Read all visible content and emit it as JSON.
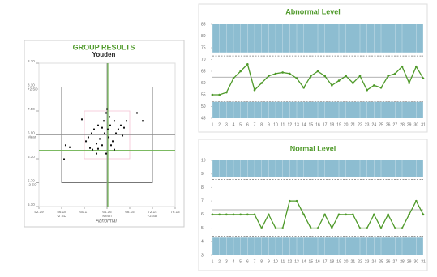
{
  "chart_data": [
    {
      "type": "scatter",
      "title": "GROUP RESULTS",
      "subtitle": "Youden",
      "x_label": "Abnormal",
      "color": "#111111",
      "x": [
        56.89,
        57.61,
        56.61,
        59.74,
        60.46,
        60.88,
        61.17,
        61.45,
        61.6,
        61.88,
        62.31,
        62.59,
        62.88,
        63.3,
        63.59,
        63.73,
        64.02,
        64.16,
        64.3,
        64.45,
        64.59,
        64.73,
        64.87,
        65.16,
        65.44,
        65.73,
        66.15,
        66.58,
        66.87,
        67.15,
        67.58,
        69.43,
        70.43,
        64.02,
        62.31,
        65.44,
        63.3,
        62.59
      ],
      "y": [
        6.64,
        6.59,
        6.29,
        7.29,
        6.74,
        6.84,
        6.57,
        6.94,
        6.53,
        7.04,
        6.68,
        6.55,
        6.8,
        6.64,
        7.25,
        6.94,
        7.45,
        7.55,
        7.04,
        6.84,
        7.35,
        7.14,
        6.64,
        6.74,
        7.25,
        6.94,
        7.04,
        7.14,
        6.88,
        7.08,
        7.25,
        7.45,
        7.25,
        6.43,
        6.43,
        6.53,
        7.08,
        7.14
      ],
      "xlim": [
        52.19,
        76.13
      ],
      "ylim": [
        5.1,
        8.7
      ],
      "xticks": [
        52.19,
        56.18,
        60.17,
        64.16,
        68.15,
        72.14,
        76.13
      ],
      "yticks": [
        {
          "value": 5.1,
          "label": "5.10"
        },
        {
          "value": 5.7,
          "label": "5.70"
        },
        {
          "value": 6.3,
          "label": "6.30"
        },
        {
          "value": 6.9,
          "label": "6.90"
        },
        {
          "value": 7.5,
          "label": "7.50"
        },
        {
          "value": 8.1,
          "label": "8.10"
        },
        {
          "value": 8.7,
          "label": "8.70"
        }
      ],
      "xtick_notes": [
        {
          "value": 56.18,
          "label": "-2 SD"
        },
        {
          "value": 64.16,
          "label": "Mean"
        },
        {
          "value": 72.14,
          "label": "+2 SD"
        }
      ],
      "ytick_notes": [
        {
          "value": 5.7,
          "label": "-2 SD"
        },
        {
          "value": 6.9,
          "label": "Mean"
        },
        {
          "value": 8.1,
          "label": "+2 SD"
        }
      ],
      "outer_box": {
        "x": [
          56.18,
          72.14
        ],
        "y": [
          5.7,
          8.1
        ],
        "color": "#555555"
      },
      "inner_box": {
        "x": [
          60.17,
          68.15
        ],
        "y": [
          6.3,
          7.5
        ],
        "color": "#f5c4d4"
      },
      "mean_lines": {
        "x": 64.16,
        "y": 6.9,
        "color": "#888888"
      },
      "target_lines": {
        "x": 64.3,
        "y": 6.51,
        "color": "#6ab04c"
      }
    },
    {
      "type": "line",
      "title": "Abnormal Level",
      "color": "#4f9a2a",
      "categories": [
        1,
        2,
        3,
        4,
        5,
        6,
        7,
        8,
        9,
        10,
        11,
        12,
        13,
        14,
        15,
        16,
        17,
        18,
        19,
        20,
        21,
        22,
        23,
        24,
        25,
        26,
        27,
        28,
        29,
        30,
        31
      ],
      "values": [
        55,
        55,
        56,
        62,
        65,
        68,
        57,
        60,
        63,
        64,
        64.5,
        64,
        62,
        58,
        63,
        65,
        63,
        59,
        61,
        63,
        60,
        63,
        57,
        59,
        58,
        63,
        64,
        67,
        60,
        67,
        62
      ],
      "ylim": [
        45,
        85
      ],
      "yticks": [
        45,
        50,
        55,
        60,
        65,
        70,
        75,
        80,
        85
      ],
      "bands": [
        [
          73,
          85
        ],
        [
          45,
          52
        ]
      ],
      "band_color": "#8dbdd1",
      "dashed_lines": [
        71.5,
        52
      ],
      "mean_line": 62.5
    },
    {
      "type": "line",
      "title": "Normal Level",
      "color": "#4f9a2a",
      "categories": [
        1,
        2,
        3,
        4,
        5,
        6,
        7,
        8,
        9,
        10,
        11,
        12,
        13,
        14,
        15,
        16,
        17,
        18,
        19,
        20,
        21,
        22,
        23,
        24,
        25,
        26,
        27,
        28,
        29,
        30,
        31
      ],
      "values": [
        6,
        6,
        6,
        6,
        6,
        6,
        6,
        5,
        6,
        5,
        5,
        7,
        7,
        6,
        5,
        5,
        6,
        5,
        6,
        6,
        6,
        5,
        5,
        6,
        5,
        6,
        5,
        5,
        6,
        7,
        6
      ],
      "ylim": [
        3,
        10
      ],
      "yticks": [
        3,
        4,
        5,
        6,
        7,
        8,
        9,
        10
      ],
      "bands": [
        [
          8.8,
          10
        ],
        [
          3,
          4.3
        ]
      ],
      "band_color": "#8dbdd1",
      "dashed_lines": [
        8.6,
        4.4
      ],
      "mean_line": 6.35
    }
  ]
}
